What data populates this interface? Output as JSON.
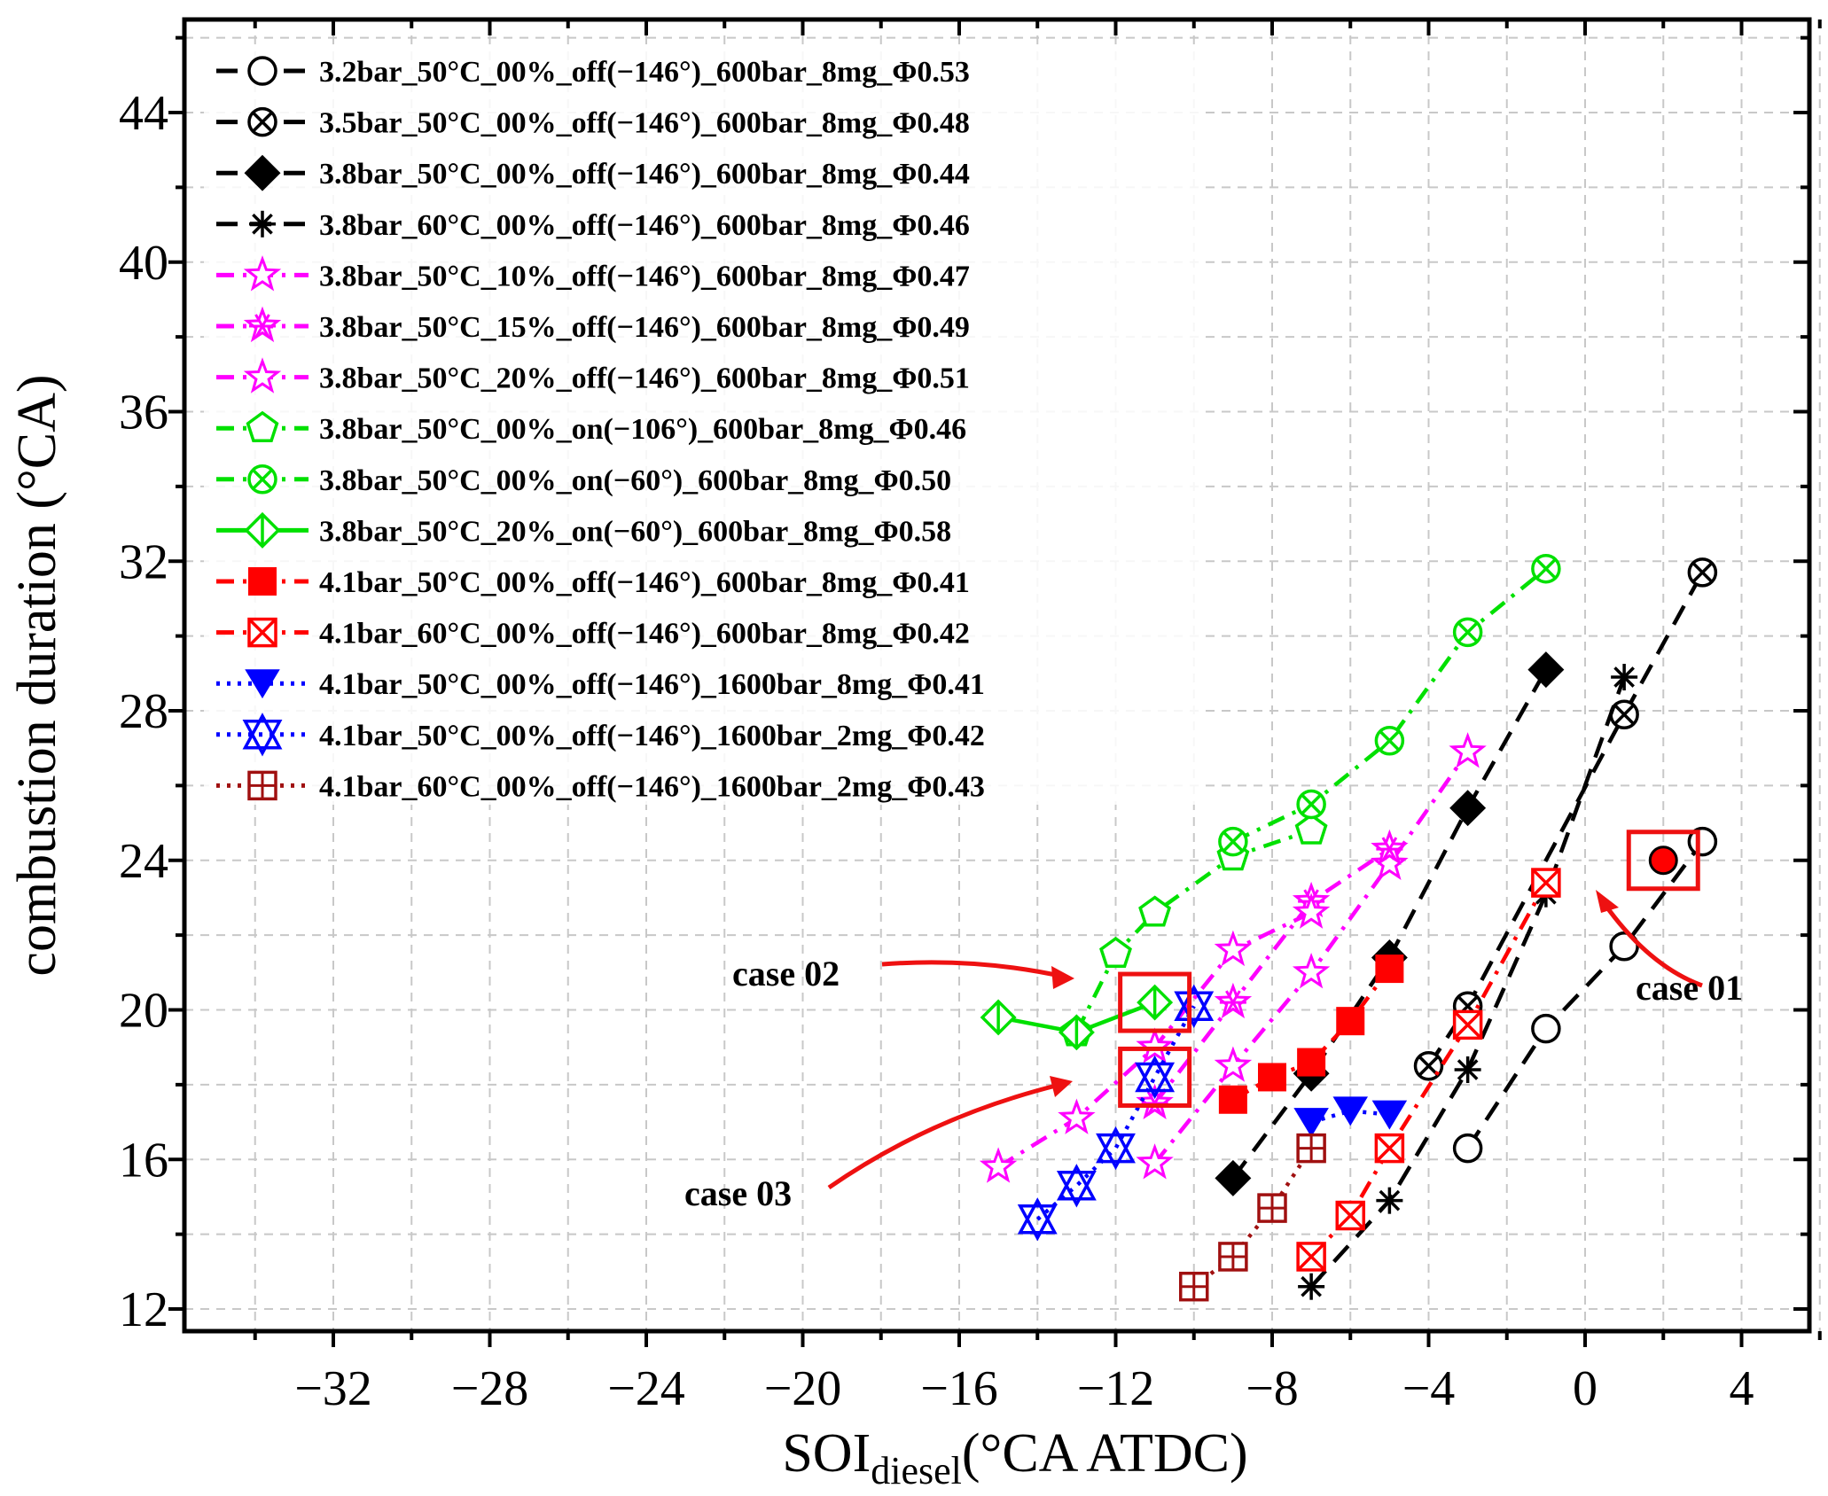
{
  "chart_data": {
    "type": "line",
    "title": "",
    "xlabel": "SOI",
    "xlabel_sub": "diesel",
    "xlabel_suffix": "(°CA ATDC)",
    "ylabel": "combustion duration (°CA)",
    "xlim": [
      -35,
      7
    ],
    "ylim": [
      11.5,
      46.5
    ],
    "xticks": [
      -32,
      -28,
      -24,
      -20,
      -16,
      -12,
      -8,
      -4,
      0,
      4
    ],
    "xtick_labels": [
      "−32",
      "−28",
      "−24",
      "−20",
      "−16",
      "−12",
      "−8",
      "−4",
      "0",
      "4"
    ],
    "yticks": [
      12,
      16,
      20,
      24,
      28,
      32,
      36,
      40,
      44
    ],
    "ytick_labels": [
      "12",
      "16",
      "20",
      "24",
      "28",
      "32",
      "36",
      "40",
      "44"
    ],
    "grid": true,
    "legend_position": "top-left",
    "series": [
      {
        "name": "3.2bar_50°C_00%_off(−146°)_600bar_8mg_Φ0.53",
        "color": "#000000",
        "dash": "long",
        "marker": "circle-open",
        "x": [
          -3,
          -1,
          1,
          3
        ],
        "y": [
          16.3,
          19.5,
          21.7,
          24.5
        ]
      },
      {
        "name": "3.5bar_50°C_00%_off(−146°)_600bar_8mg_Φ0.48",
        "color": "#000000",
        "dash": "long",
        "marker": "circle-x",
        "x": [
          -4,
          -3,
          1,
          3
        ],
        "y": [
          18.5,
          20.1,
          27.9,
          31.7
        ]
      },
      {
        "name": "3.8bar_50°C_00%_off(−146°)_600bar_8mg_Φ0.44",
        "color": "#000000",
        "dash": "long",
        "marker": "diamond-filled",
        "x": [
          -9,
          -7,
          -5,
          -3,
          -1
        ],
        "y": [
          15.5,
          18.3,
          21.4,
          25.4,
          29.1
        ]
      },
      {
        "name": "3.8bar_60°C_00%_off(−146°)_600bar_8mg_Φ0.46",
        "color": "#000000",
        "dash": "long",
        "marker": "asterisk",
        "x": [
          -7,
          -5,
          -3,
          -1,
          1
        ],
        "y": [
          12.6,
          14.9,
          18.4,
          23.1,
          28.9
        ]
      },
      {
        "name": "3.8bar_50°C_10%_off(−146°)_600bar_8mg_Φ0.47",
        "color": "#ff00ff",
        "dash": "dashdot",
        "marker": "star-open",
        "x": [
          -11,
          -9,
          -7,
          -5,
          -3
        ],
        "y": [
          15.9,
          18.5,
          21.0,
          23.9,
          26.9
        ]
      },
      {
        "name": "3.8bar_50°C_15%_off(−146°)_600bar_8mg_Φ0.49",
        "color": "#ff00ff",
        "dash": "dashdot",
        "marker": "asterisk-star",
        "x": [
          -11,
          -9,
          -7,
          -5
        ],
        "y": [
          17.5,
          20.2,
          22.9,
          24.3
        ]
      },
      {
        "name": "3.8bar_50°C_20%_off(−146°)_600bar_8mg_Φ0.51",
        "color": "#ff00ff",
        "dash": "dashdot",
        "marker": "star-open",
        "x": [
          -15,
          -13,
          -11,
          -9,
          -7
        ],
        "y": [
          15.8,
          17.1,
          19.0,
          21.6,
          22.6
        ]
      },
      {
        "name": "3.8bar_50°C_00%_on(−106°)_600bar_8mg_Φ0.46",
        "color": "#00e000",
        "dash": "dashdot",
        "marker": "pentagon-open",
        "x": [
          -13,
          -12,
          -11,
          -9,
          -7
        ],
        "y": [
          19.4,
          21.5,
          22.6,
          24.1,
          24.8
        ]
      },
      {
        "name": "3.8bar_50°C_00%_on(−60°)_600bar_8mg_Φ0.50",
        "color": "#00e000",
        "dash": "dashdot",
        "marker": "circle-x",
        "x": [
          -9,
          -7,
          -5,
          -3,
          -1
        ],
        "y": [
          24.5,
          25.5,
          27.2,
          30.1,
          31.8
        ]
      },
      {
        "name": "3.8bar_50°C_20%_on(−60°)_600bar_8mg_Φ0.58",
        "color": "#00e000",
        "dash": "solid",
        "marker": "diamond-open",
        "x": [
          -15,
          -13,
          -11
        ],
        "y": [
          19.8,
          19.4,
          20.2
        ]
      },
      {
        "name": "4.1bar_50°C_00%_off(−146°)_600bar_8mg_Φ0.41",
        "color": "#ff0000",
        "dash": "dashdot",
        "marker": "square-filled",
        "x": [
          -9,
          -8,
          -7,
          -6,
          -5
        ],
        "y": [
          17.6,
          18.2,
          18.6,
          19.7,
          21.1
        ]
      },
      {
        "name": "4.1bar_60°C_00%_off(−146°)_600bar_8mg_Φ0.42",
        "color": "#ff0000",
        "dash": "dashdot",
        "marker": "square-x",
        "x": [
          -7,
          -6,
          -5,
          -3,
          -1
        ],
        "y": [
          13.4,
          14.5,
          16.3,
          19.6,
          23.4
        ]
      },
      {
        "name": "4.1bar_50°C_00%_off(−146°)_1600bar_8mg_Φ0.41",
        "color": "#0000ff",
        "dash": "dotted",
        "marker": "triangle-down-filled",
        "x": [
          -7,
          -6,
          -5
        ],
        "y": [
          17.0,
          17.3,
          17.2
        ]
      },
      {
        "name": "4.1bar_50°C_00%_off(−146°)_1600bar_2mg_Φ0.42",
        "color": "#0000ff",
        "dash": "dotted",
        "marker": "triangle-x",
        "x": [
          -14,
          -13,
          -12,
          -11,
          -10
        ],
        "y": [
          14.4,
          15.3,
          16.3,
          18.2,
          20.1
        ]
      },
      {
        "name": "4.1bar_60°C_00%_off(−146°)_1600bar_2mg_Φ0.43",
        "color": "#a01010",
        "dash": "dotted",
        "marker": "square-plus",
        "x": [
          -10,
          -9,
          -8,
          -7
        ],
        "y": [
          12.6,
          13.4,
          14.7,
          16.3
        ]
      }
    ],
    "highlight": {
      "name": "case 01 point",
      "x": 2,
      "y": 24.0,
      "color": "#ff0000"
    },
    "annotations": [
      {
        "label": "case 01",
        "box": {
          "x": 2,
          "y": 24.0
        }
      },
      {
        "label": "case 02",
        "box": {
          "x": -11,
          "y": 20.2
        }
      },
      {
        "label": "case 03",
        "box": {
          "x": -11,
          "y": 18.2
        }
      }
    ]
  }
}
